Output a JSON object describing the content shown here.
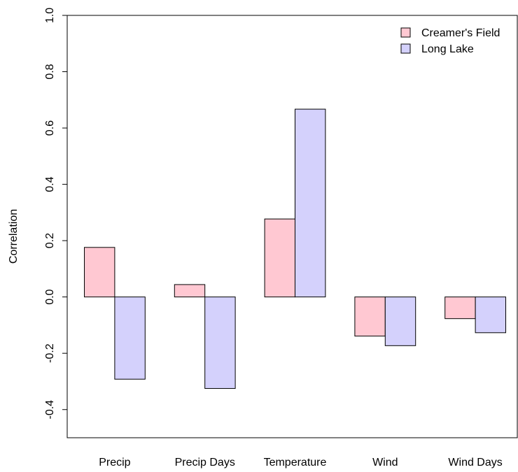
{
  "chart_data": {
    "type": "bar",
    "ylabel": "Correlation",
    "ylim": [
      -0.5,
      1.0
    ],
    "yticks": [
      "-0.4",
      "-0.2",
      "0.0",
      "0.2",
      "0.4",
      "0.6",
      "0.8",
      "1.0"
    ],
    "categories": [
      "Precip",
      "Precip Days",
      "Temperature",
      "Wind",
      "Wind Days"
    ],
    "series": [
      {
        "name": "Creamer's Field",
        "color": "#ffc8d2",
        "values": [
          0.176,
          0.044,
          0.277,
          -0.139,
          -0.077
        ]
      },
      {
        "name": "Long Lake",
        "color": "#d4d1fc",
        "values": [
          -0.292,
          -0.325,
          0.667,
          -0.173,
          -0.127
        ]
      }
    ],
    "legend_position": "top-right",
    "grid": false
  }
}
